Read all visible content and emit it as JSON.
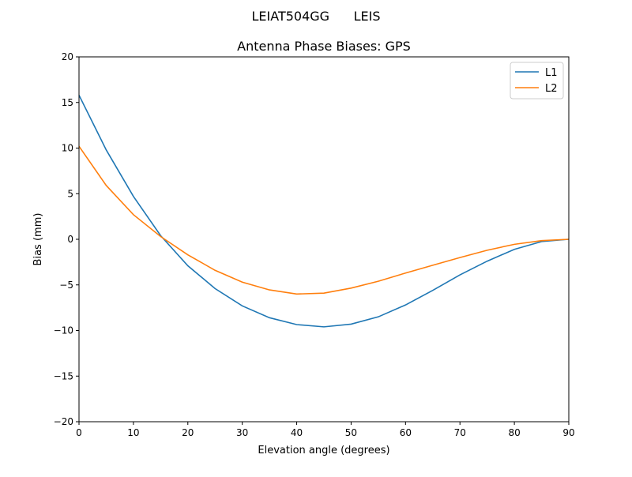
{
  "chart_data": {
    "type": "line",
    "suptitle": "LEIAT504GG      LEIS",
    "title": "Antenna Phase Biases: GPS",
    "xlabel": "Elevation angle (degrees)",
    "ylabel": "Bias (mm)",
    "xlim": [
      0,
      90
    ],
    "ylim": [
      -20,
      20
    ],
    "xticks": [
      0,
      10,
      20,
      30,
      40,
      50,
      60,
      70,
      80,
      90
    ],
    "yticks": [
      -20,
      -15,
      -10,
      -5,
      0,
      5,
      10,
      15,
      20
    ],
    "ytick_labels": [
      "−20",
      "−15",
      "−10",
      "−5",
      "0",
      "5",
      "10",
      "15",
      "20"
    ],
    "grid": false,
    "legend_position": "top-right",
    "x": [
      0,
      5,
      10,
      15,
      20,
      25,
      30,
      35,
      40,
      45,
      50,
      55,
      60,
      65,
      70,
      75,
      80,
      85,
      90
    ],
    "series": [
      {
        "name": "L1",
        "color": "#1f77b4",
        "values": [
          15.8,
          9.8,
          4.7,
          0.4,
          -2.9,
          -5.4,
          -7.3,
          -8.6,
          -9.35,
          -9.6,
          -9.3,
          -8.5,
          -7.2,
          -5.6,
          -3.9,
          -2.4,
          -1.1,
          -0.25,
          0.0
        ]
      },
      {
        "name": "L2",
        "color": "#ff7f0e",
        "values": [
          10.2,
          5.9,
          2.7,
          0.3,
          -1.7,
          -3.4,
          -4.7,
          -5.55,
          -6.0,
          -5.9,
          -5.35,
          -4.6,
          -3.7,
          -2.85,
          -2.0,
          -1.2,
          -0.55,
          -0.15,
          0.0
        ]
      }
    ]
  }
}
